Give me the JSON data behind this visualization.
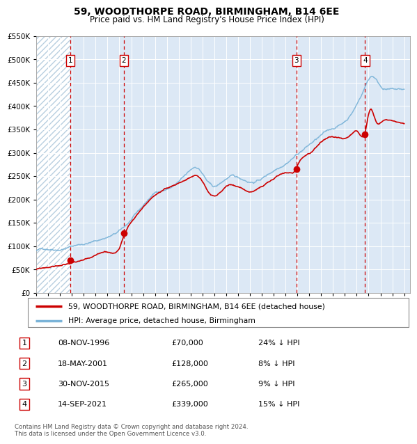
{
  "title": "59, WOODTHORPE ROAD, BIRMINGHAM, B14 6EE",
  "subtitle": "Price paid vs. HM Land Registry's House Price Index (HPI)",
  "sale_year_floats": [
    1996.856,
    2001.378,
    2015.917,
    2021.706
  ],
  "sale_prices": [
    70000,
    128000,
    265000,
    339000
  ],
  "sale_labels": [
    "1",
    "2",
    "3",
    "4"
  ],
  "sale_info": [
    {
      "label": "1",
      "date": "08-NOV-1996",
      "price": "£70,000",
      "hpi": "24% ↓ HPI"
    },
    {
      "label": "2",
      "date": "18-MAY-2001",
      "price": "£128,000",
      "hpi": "8% ↓ HPI"
    },
    {
      "label": "3",
      "date": "30-NOV-2015",
      "price": "£265,000",
      "hpi": "9% ↓ HPI"
    },
    {
      "label": "4",
      "date": "14-SEP-2021",
      "price": "£339,000",
      "hpi": "15% ↓ HPI"
    }
  ],
  "hpi_anchors": [
    [
      1994.0,
      88000
    ],
    [
      1995.0,
      93000
    ],
    [
      1996.0,
      96000
    ],
    [
      1997.0,
      103000
    ],
    [
      1998.0,
      109000
    ],
    [
      1999.0,
      115000
    ],
    [
      2000.0,
      124000
    ],
    [
      2001.0,
      135000
    ],
    [
      2002.0,
      158000
    ],
    [
      2003.0,
      185000
    ],
    [
      2004.0,
      212000
    ],
    [
      2005.0,
      222000
    ],
    [
      2006.0,
      237000
    ],
    [
      2007.0,
      258000
    ],
    [
      2007.5,
      265000
    ],
    [
      2008.0,
      252000
    ],
    [
      2008.5,
      232000
    ],
    [
      2009.0,
      222000
    ],
    [
      2009.5,
      228000
    ],
    [
      2010.0,
      238000
    ],
    [
      2010.5,
      242000
    ],
    [
      2011.0,
      238000
    ],
    [
      2011.5,
      235000
    ],
    [
      2012.0,
      232000
    ],
    [
      2013.0,
      240000
    ],
    [
      2014.0,
      258000
    ],
    [
      2015.0,
      278000
    ],
    [
      2016.0,
      300000
    ],
    [
      2017.0,
      320000
    ],
    [
      2018.0,
      338000
    ],
    [
      2019.0,
      352000
    ],
    [
      2020.0,
      368000
    ],
    [
      2021.0,
      405000
    ],
    [
      2021.5,
      432000
    ],
    [
      2022.0,
      460000
    ],
    [
      2022.3,
      468000
    ],
    [
      2022.6,
      462000
    ],
    [
      2023.0,
      448000
    ],
    [
      2023.5,
      442000
    ],
    [
      2024.0,
      440000
    ],
    [
      2025.0,
      438000
    ]
  ],
  "price_anchors": [
    [
      1994.0,
      58000
    ],
    [
      1995.0,
      62000
    ],
    [
      1996.0,
      66000
    ],
    [
      1996.856,
      70000
    ],
    [
      1997.0,
      71500
    ],
    [
      1998.0,
      76000
    ],
    [
      1999.0,
      81000
    ],
    [
      2000.0,
      90000
    ],
    [
      2001.0,
      100000
    ],
    [
      2001.378,
      128000
    ],
    [
      2002.0,
      158000
    ],
    [
      2003.0,
      188000
    ],
    [
      2004.0,
      215000
    ],
    [
      2005.0,
      225000
    ],
    [
      2006.0,
      238000
    ],
    [
      2007.0,
      250000
    ],
    [
      2007.5,
      252000
    ],
    [
      2008.0,
      240000
    ],
    [
      2008.5,
      218000
    ],
    [
      2009.0,
      208000
    ],
    [
      2009.5,
      215000
    ],
    [
      2010.0,
      228000
    ],
    [
      2010.5,
      232000
    ],
    [
      2011.0,
      228000
    ],
    [
      2011.5,
      222000
    ],
    [
      2012.0,
      218000
    ],
    [
      2013.0,
      228000
    ],
    [
      2014.0,
      242000
    ],
    [
      2015.0,
      255000
    ],
    [
      2015.917,
      265000
    ],
    [
      2016.0,
      270000
    ],
    [
      2017.0,
      298000
    ],
    [
      2018.0,
      318000
    ],
    [
      2019.0,
      328000
    ],
    [
      2020.0,
      322000
    ],
    [
      2020.5,
      330000
    ],
    [
      2021.0,
      340000
    ],
    [
      2021.706,
      339000
    ],
    [
      2022.0,
      378000
    ],
    [
      2022.2,
      388000
    ],
    [
      2022.4,
      375000
    ],
    [
      2022.6,
      360000
    ],
    [
      2022.8,
      352000
    ],
    [
      2023.0,
      355000
    ],
    [
      2023.5,
      362000
    ],
    [
      2024.0,
      358000
    ],
    [
      2024.5,
      352000
    ],
    [
      2025.0,
      350000
    ]
  ],
  "hpi_line_color": "#7ab3d8",
  "price_line_color": "#cc0000",
  "dot_color": "#cc0000",
  "vline_color": "#cc0000",
  "shade_color_light": "#dce8f5",
  "hatch_color": "#c8d8e8",
  "grid_color": "#ffffff",
  "plot_bg_color": "#dce8f5",
  "ylim": [
    0,
    550000
  ],
  "yticks": [
    0,
    50000,
    100000,
    150000,
    200000,
    250000,
    300000,
    350000,
    400000,
    450000,
    500000,
    550000
  ],
  "xlim": [
    1994.0,
    2025.5
  ],
  "legend_line1": "59, WOODTHORPE ROAD, BIRMINGHAM, B14 6EE (detached house)",
  "legend_line2": "HPI: Average price, detached house, Birmingham",
  "footer": "Contains HM Land Registry data © Crown copyright and database right 2024.\nThis data is licensed under the Open Government Licence v3.0.",
  "title_fontsize": 10,
  "subtitle_fontsize": 8.5
}
